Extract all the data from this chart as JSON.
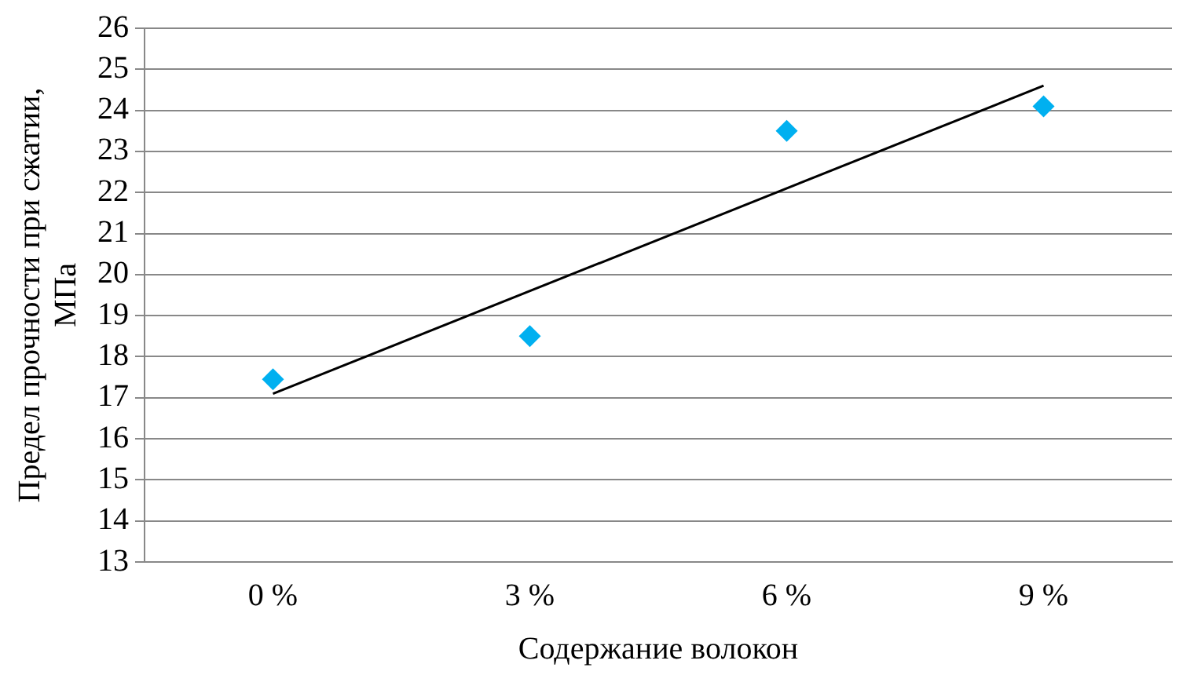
{
  "chart_data": {
    "type": "scatter",
    "xlabel": "Содержание волокон",
    "ylabel": "Предел прочности при сжатии, МПа",
    "categories": [
      "0 %",
      "3 %",
      "6 %",
      "9 %"
    ],
    "series": [
      {
        "type": "scatter",
        "color": "#00b0f0",
        "values": [
          17.45,
          18.5,
          23.5,
          24.1
        ],
        "marker": "diamond"
      },
      {
        "type": "line",
        "color": "#000000",
        "x": [
          "0 %",
          "9 %"
        ],
        "values": [
          17.1,
          24.6
        ],
        "marker": "none",
        "line_style": "solid"
      }
    ],
    "ylim": [
      13,
      26
    ],
    "yticks": [
      13,
      14,
      15,
      16,
      17,
      18,
      19,
      20,
      21,
      22,
      23,
      24,
      25,
      26
    ],
    "grid": "y",
    "legend": false
  }
}
